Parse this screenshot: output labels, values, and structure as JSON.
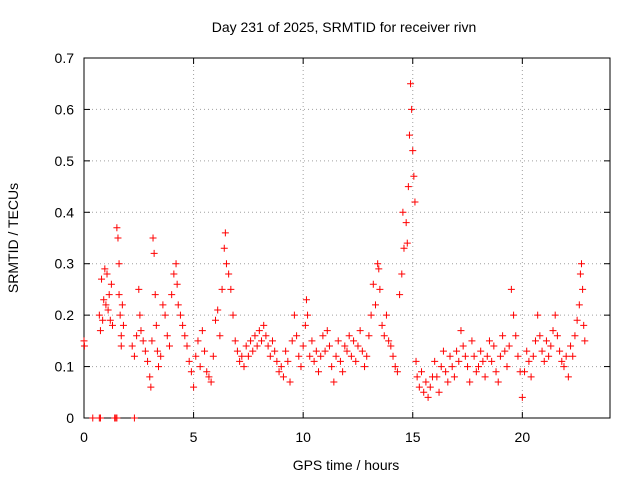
{
  "chart_data": {
    "type": "scatter",
    "title": "Day 231 of 2025, SRMTID for receiver rivn",
    "xlabel": "GPS time / hours",
    "ylabel": "SRMTID / TECUs",
    "xlim": [
      0,
      24
    ],
    "ylim": [
      0,
      0.7
    ],
    "xticks": [
      0,
      5,
      10,
      15,
      20
    ],
    "xtick_labels": [
      "0",
      "5",
      "10",
      "15",
      "20"
    ],
    "yticks": [
      0,
      0.1,
      0.2,
      0.3,
      0.4,
      0.5,
      0.6,
      0.7
    ],
    "ytick_labels": [
      "0",
      "0.1",
      "0.2",
      "0.3",
      "0.4",
      "0.5",
      "0.6",
      "0.7"
    ],
    "grid": true,
    "marker": "+",
    "series": [
      {
        "name": "SRMTID",
        "color": "#ff0000",
        "points": [
          [
            0.0,
            0.15
          ],
          [
            0.02,
            0.14
          ],
          [
            0.4,
            0.0
          ],
          [
            0.7,
            0.0
          ],
          [
            0.75,
            0.0
          ],
          [
            1.4,
            0.0
          ],
          [
            1.45,
            0.0
          ],
          [
            1.5,
            0.0
          ],
          [
            2.3,
            0.0
          ],
          [
            0.7,
            0.2
          ],
          [
            0.75,
            0.17
          ],
          [
            0.8,
            0.27
          ],
          [
            0.85,
            0.19
          ],
          [
            0.9,
            0.23
          ],
          [
            0.95,
            0.29
          ],
          [
            1.0,
            0.22
          ],
          [
            1.05,
            0.28
          ],
          [
            1.1,
            0.21
          ],
          [
            1.15,
            0.24
          ],
          [
            1.2,
            0.19
          ],
          [
            1.25,
            0.26
          ],
          [
            1.3,
            0.18
          ],
          [
            1.5,
            0.37
          ],
          [
            1.55,
            0.35
          ],
          [
            1.6,
            0.3
          ],
          [
            1.6,
            0.24
          ],
          [
            1.65,
            0.2
          ],
          [
            1.7,
            0.16
          ],
          [
            1.7,
            0.14
          ],
          [
            1.75,
            0.22
          ],
          [
            1.8,
            0.18
          ],
          [
            2.2,
            0.14
          ],
          [
            2.3,
            0.12
          ],
          [
            2.4,
            0.16
          ],
          [
            2.5,
            0.25
          ],
          [
            2.55,
            0.2
          ],
          [
            2.6,
            0.17
          ],
          [
            2.7,
            0.15
          ],
          [
            2.8,
            0.13
          ],
          [
            2.9,
            0.11
          ],
          [
            3.0,
            0.08
          ],
          [
            3.05,
            0.06
          ],
          [
            3.1,
            0.15
          ],
          [
            3.15,
            0.35
          ],
          [
            3.2,
            0.32
          ],
          [
            3.25,
            0.24
          ],
          [
            3.3,
            0.18
          ],
          [
            3.35,
            0.13
          ],
          [
            3.4,
            0.1
          ],
          [
            3.5,
            0.12
          ],
          [
            3.6,
            0.22
          ],
          [
            3.7,
            0.2
          ],
          [
            3.8,
            0.16
          ],
          [
            3.9,
            0.14
          ],
          [
            4.0,
            0.24
          ],
          [
            4.1,
            0.28
          ],
          [
            4.2,
            0.3
          ],
          [
            4.25,
            0.26
          ],
          [
            4.3,
            0.22
          ],
          [
            4.4,
            0.2
          ],
          [
            4.5,
            0.18
          ],
          [
            4.6,
            0.16
          ],
          [
            4.7,
            0.14
          ],
          [
            4.8,
            0.11
          ],
          [
            4.9,
            0.09
          ],
          [
            5.0,
            0.06
          ],
          [
            5.1,
            0.12
          ],
          [
            5.2,
            0.15
          ],
          [
            5.3,
            0.1
          ],
          [
            5.4,
            0.17
          ],
          [
            5.5,
            0.13
          ],
          [
            5.6,
            0.09
          ],
          [
            5.7,
            0.08
          ],
          [
            5.8,
            0.07
          ],
          [
            5.9,
            0.12
          ],
          [
            6.0,
            0.19
          ],
          [
            6.1,
            0.21
          ],
          [
            6.2,
            0.16
          ],
          [
            6.3,
            0.25
          ],
          [
            6.4,
            0.33
          ],
          [
            6.45,
            0.36
          ],
          [
            6.5,
            0.3
          ],
          [
            6.6,
            0.28
          ],
          [
            6.7,
            0.25
          ],
          [
            6.8,
            0.2
          ],
          [
            6.9,
            0.15
          ],
          [
            7.0,
            0.13
          ],
          [
            7.1,
            0.11
          ],
          [
            7.2,
            0.12
          ],
          [
            7.3,
            0.1
          ],
          [
            7.4,
            0.14
          ],
          [
            7.5,
            0.12
          ],
          [
            7.6,
            0.15
          ],
          [
            7.7,
            0.13
          ],
          [
            7.8,
            0.16
          ],
          [
            7.9,
            0.14
          ],
          [
            8.0,
            0.17
          ],
          [
            8.1,
            0.15
          ],
          [
            8.2,
            0.18
          ],
          [
            8.3,
            0.16
          ],
          [
            8.4,
            0.14
          ],
          [
            8.5,
            0.12
          ],
          [
            8.6,
            0.15
          ],
          [
            8.7,
            0.13
          ],
          [
            8.8,
            0.11
          ],
          [
            8.9,
            0.09
          ],
          [
            9.0,
            0.1
          ],
          [
            9.1,
            0.08
          ],
          [
            9.2,
            0.13
          ],
          [
            9.3,
            0.11
          ],
          [
            9.4,
            0.07
          ],
          [
            9.5,
            0.15
          ],
          [
            9.6,
            0.2
          ],
          [
            9.7,
            0.16
          ],
          [
            9.8,
            0.12
          ],
          [
            9.9,
            0.1
          ],
          [
            10.0,
            0.14
          ],
          [
            10.1,
            0.18
          ],
          [
            10.15,
            0.23
          ],
          [
            10.2,
            0.2
          ],
          [
            10.3,
            0.12
          ],
          [
            10.4,
            0.15
          ],
          [
            10.5,
            0.11
          ],
          [
            10.6,
            0.13
          ],
          [
            10.7,
            0.09
          ],
          [
            10.8,
            0.12
          ],
          [
            10.9,
            0.16
          ],
          [
            11.0,
            0.13
          ],
          [
            11.1,
            0.17
          ],
          [
            11.2,
            0.14
          ],
          [
            11.3,
            0.1
          ],
          [
            11.4,
            0.07
          ],
          [
            11.5,
            0.12
          ],
          [
            11.6,
            0.15
          ],
          [
            11.7,
            0.11
          ],
          [
            11.8,
            0.09
          ],
          [
            11.9,
            0.14
          ],
          [
            12.0,
            0.13
          ],
          [
            12.1,
            0.16
          ],
          [
            12.2,
            0.12
          ],
          [
            12.3,
            0.15
          ],
          [
            12.4,
            0.11
          ],
          [
            12.5,
            0.14
          ],
          [
            12.6,
            0.17
          ],
          [
            12.7,
            0.13
          ],
          [
            12.8,
            0.1
          ],
          [
            12.9,
            0.12
          ],
          [
            13.0,
            0.16
          ],
          [
            13.1,
            0.2
          ],
          [
            13.2,
            0.26
          ],
          [
            13.3,
            0.22
          ],
          [
            13.4,
            0.3
          ],
          [
            13.45,
            0.29
          ],
          [
            13.5,
            0.25
          ],
          [
            13.6,
            0.18
          ],
          [
            13.7,
            0.16
          ],
          [
            13.8,
            0.2
          ],
          [
            13.9,
            0.15
          ],
          [
            14.0,
            0.14
          ],
          [
            14.1,
            0.12
          ],
          [
            14.2,
            0.1
          ],
          [
            14.3,
            0.09
          ],
          [
            14.4,
            0.24
          ],
          [
            14.5,
            0.28
          ],
          [
            14.55,
            0.4
          ],
          [
            14.6,
            0.33
          ],
          [
            14.7,
            0.38
          ],
          [
            14.75,
            0.34
          ],
          [
            14.8,
            0.45
          ],
          [
            14.85,
            0.55
          ],
          [
            14.9,
            0.65
          ],
          [
            14.95,
            0.6
          ],
          [
            15.0,
            0.52
          ],
          [
            15.05,
            0.47
          ],
          [
            15.1,
            0.42
          ],
          [
            15.15,
            0.11
          ],
          [
            15.2,
            0.08
          ],
          [
            15.3,
            0.06
          ],
          [
            15.4,
            0.09
          ],
          [
            15.5,
            0.05
          ],
          [
            15.6,
            0.07
          ],
          [
            15.7,
            0.04
          ],
          [
            15.8,
            0.06
          ],
          [
            15.9,
            0.08
          ],
          [
            16.0,
            0.11
          ],
          [
            16.1,
            0.08
          ],
          [
            16.2,
            0.05
          ],
          [
            16.3,
            0.1
          ],
          [
            16.4,
            0.13
          ],
          [
            16.5,
            0.09
          ],
          [
            16.6,
            0.07
          ],
          [
            16.7,
            0.12
          ],
          [
            16.8,
            0.1
          ],
          [
            16.9,
            0.08
          ],
          [
            17.0,
            0.13
          ],
          [
            17.1,
            0.11
          ],
          [
            17.2,
            0.17
          ],
          [
            17.3,
            0.14
          ],
          [
            17.4,
            0.12
          ],
          [
            17.5,
            0.1
          ],
          [
            17.6,
            0.07
          ],
          [
            17.7,
            0.15
          ],
          [
            17.8,
            0.12
          ],
          [
            17.9,
            0.09
          ],
          [
            18.0,
            0.1
          ],
          [
            18.1,
            0.13
          ],
          [
            18.2,
            0.11
          ],
          [
            18.3,
            0.08
          ],
          [
            18.4,
            0.12
          ],
          [
            18.5,
            0.15
          ],
          [
            18.6,
            0.11
          ],
          [
            18.7,
            0.14
          ],
          [
            18.8,
            0.09
          ],
          [
            18.9,
            0.07
          ],
          [
            19.0,
            0.12
          ],
          [
            19.1,
            0.16
          ],
          [
            19.2,
            0.13
          ],
          [
            19.3,
            0.1
          ],
          [
            19.4,
            0.14
          ],
          [
            19.5,
            0.25
          ],
          [
            19.6,
            0.2
          ],
          [
            19.7,
            0.16
          ],
          [
            19.8,
            0.12
          ],
          [
            19.9,
            0.09
          ],
          [
            20.0,
            0.04
          ],
          [
            20.1,
            0.09
          ],
          [
            20.2,
            0.13
          ],
          [
            20.3,
            0.11
          ],
          [
            20.4,
            0.08
          ],
          [
            20.5,
            0.12
          ],
          [
            20.6,
            0.15
          ],
          [
            20.7,
            0.2
          ],
          [
            20.8,
            0.16
          ],
          [
            20.9,
            0.13
          ],
          [
            21.0,
            0.11
          ],
          [
            21.1,
            0.15
          ],
          [
            21.2,
            0.12
          ],
          [
            21.3,
            0.14
          ],
          [
            21.4,
            0.17
          ],
          [
            21.5,
            0.2
          ],
          [
            21.6,
            0.16
          ],
          [
            21.7,
            0.13
          ],
          [
            21.8,
            0.11
          ],
          [
            21.9,
            0.1
          ],
          [
            22.0,
            0.12
          ],
          [
            22.1,
            0.08
          ],
          [
            22.2,
            0.14
          ],
          [
            22.3,
            0.12
          ],
          [
            22.4,
            0.16
          ],
          [
            22.5,
            0.19
          ],
          [
            22.6,
            0.22
          ],
          [
            22.65,
            0.28
          ],
          [
            22.7,
            0.3
          ],
          [
            22.75,
            0.25
          ],
          [
            22.8,
            0.18
          ],
          [
            22.85,
            0.15
          ]
        ]
      }
    ]
  }
}
